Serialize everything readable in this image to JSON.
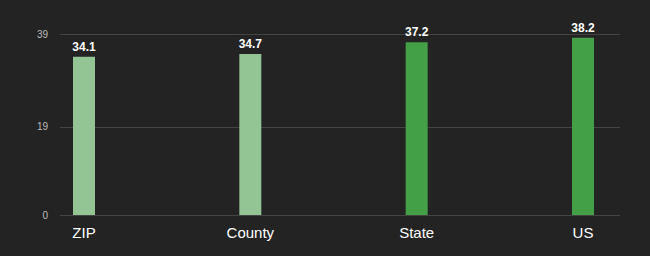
{
  "chart_data": {
    "type": "bar",
    "categories": [
      "ZIP",
      "County",
      "State",
      "US"
    ],
    "values": [
      34.1,
      34.7,
      37.2,
      38.2
    ],
    "colors": [
      "#93c493",
      "#93c493",
      "#43a047",
      "#43a047"
    ],
    "ylim": [
      0,
      39
    ],
    "yticks": [
      0,
      19,
      39
    ],
    "grid": true,
    "data_labels": true
  }
}
